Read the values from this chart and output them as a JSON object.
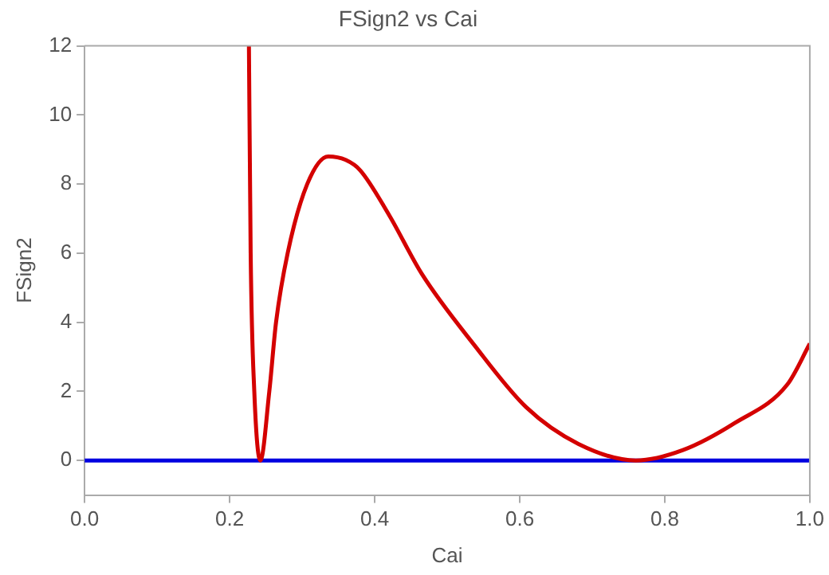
{
  "chart_data": {
    "type": "line",
    "title": "FSign2 vs Cai",
    "xlabel": "Cai",
    "ylabel": "FSign2",
    "xlim": [
      0,
      1
    ],
    "ylim": [
      -1,
      12
    ],
    "xticks": [
      {
        "value": 0,
        "label": "0.0"
      },
      0.2,
      0.4,
      0.6,
      0.8,
      {
        "value": 1,
        "label": "1.0"
      }
    ],
    "yticks": [
      0,
      2,
      4,
      6,
      8,
      10,
      12
    ],
    "grid": false,
    "legend": false,
    "marker": "none",
    "line_style": "solid",
    "series": [
      {
        "color": "#d40000",
        "x": [
          0.2266,
          0.229,
          0.234,
          0.2424,
          0.2547,
          0.264,
          0.28,
          0.307,
          0.336,
          0.36,
          0.38,
          0.42,
          0.465,
          0.537,
          0.609,
          0.681,
          0.76,
          0.825,
          0.897,
          0.969,
          1.0
        ],
        "values": [
          12,
          6,
          2,
          0,
          2,
          4,
          6,
          8,
          8.8,
          8.7,
          8.4,
          7.1,
          5.4,
          3.35,
          1.54,
          0.48,
          0,
          0.3,
          1.09,
          2.2,
          3.38
        ]
      },
      {
        "color": "#0000e0",
        "x": [
          0,
          1
        ],
        "values": [
          0,
          0
        ]
      }
    ]
  }
}
